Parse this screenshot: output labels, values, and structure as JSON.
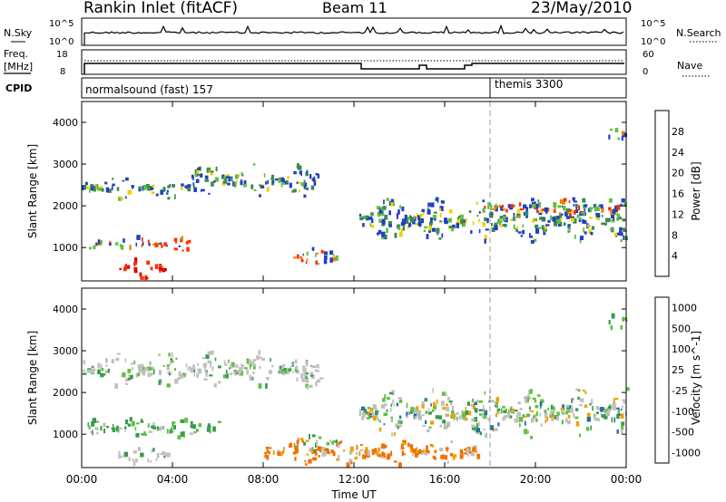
{
  "header": {
    "station": "Rankin Inlet (fitACF)",
    "beam": "Beam 11",
    "date": "23/May/2010"
  },
  "top_panels": {
    "nsky_label": "N.Sky",
    "nsky_ticks": [
      "10^5",
      "10^0"
    ],
    "nsearch_label": "N.Search",
    "nsearch_ticks": [
      "10^5",
      "10^0"
    ],
    "freq_label_line1": "Freq.",
    "freq_label_line2": "[MHz]",
    "freq_ticks": [
      "18",
      "8"
    ],
    "nave_label": "Nave",
    "nave_ticks": [
      "60",
      "0"
    ],
    "cpid_label": "CPID",
    "cpid_segments": [
      {
        "label": "normalsound (fast) 157",
        "start_hour": 0
      },
      {
        "label": "themis 3300",
        "start_hour": 18.0
      }
    ]
  },
  "chart_data": [
    {
      "type": "heatmap",
      "title": "",
      "ylabel": "Slant Range [km]",
      "xlabel": "",
      "x_range_hours": [
        0,
        24
      ],
      "ylim": [
        200,
        4500
      ],
      "y_ticks": [
        "1000",
        "2000",
        "3000",
        "4000"
      ],
      "colorbar_label": "Power [dB]",
      "colorbar_ticks": [
        "4",
        "8",
        "12",
        "16",
        "20",
        "24",
        "28"
      ],
      "colorbar_colors": [
        "#0000ff",
        "#2040c0",
        "#3a8a50",
        "#60c040",
        "#f0d000",
        "#f08000",
        "#ff3000",
        "#e00000"
      ],
      "echo_regions": [
        {
          "name": "near-range-strong",
          "t_start": 1.6,
          "t_end": 3.8,
          "r_low": 250,
          "r_high": 750,
          "level": "strong"
        },
        {
          "name": "band-1000-a",
          "t_start": 0.2,
          "t_end": 4.8,
          "r_low": 900,
          "r_high": 1250,
          "level": "medium"
        },
        {
          "name": "band-1000-b",
          "t_start": 9.3,
          "t_end": 11.4,
          "r_low": 550,
          "r_high": 1000,
          "level": "medium"
        },
        {
          "name": "band-2500-a",
          "t_start": 0.0,
          "t_end": 4.8,
          "r_low": 2150,
          "r_high": 2700,
          "level": "weak"
        },
        {
          "name": "band-2500-b",
          "t_start": 4.8,
          "t_end": 10.5,
          "r_low": 2200,
          "r_high": 3000,
          "level": "weak"
        },
        {
          "name": "band-late-1500",
          "t_start": 12.2,
          "t_end": 24.0,
          "r_low": 1100,
          "r_high": 2200,
          "level": "weak"
        },
        {
          "name": "band-late-2000",
          "t_start": 17.5,
          "t_end": 23.8,
          "r_low": 1700,
          "r_high": 2200,
          "level": "medium"
        },
        {
          "name": "far-range",
          "t_start": 23.2,
          "t_end": 24.0,
          "r_low": 3500,
          "r_high": 3900,
          "level": "medium"
        }
      ]
    },
    {
      "type": "heatmap",
      "title": "",
      "ylabel": "Slant Range [km]",
      "xlabel": "Time UT",
      "x_ticks": [
        "00:00",
        "04:00",
        "08:00",
        "12:00",
        "16:00",
        "20:00",
        "00:00"
      ],
      "x_range_hours": [
        0,
        24
      ],
      "ylim": [
        200,
        4500
      ],
      "y_ticks": [
        "1000",
        "2000",
        "3000",
        "4000"
      ],
      "colorbar_label": "Velocity [m s^-1]",
      "colorbar_ticks": [
        "1000",
        "500",
        "100",
        "25",
        "-25",
        "-100",
        "-500",
        "-1000"
      ],
      "colorbar_colors": [
        "#2030c0",
        "#2a70a0",
        "#3a9a50",
        "#60c040",
        "#c0c0c0",
        "#f0a000",
        "#f07000",
        "#ff0000"
      ],
      "echo_regions": [
        {
          "name": "near-range",
          "t_start": 1.6,
          "t_end": 3.8,
          "r_low": 250,
          "r_high": 750,
          "level": "grey"
        },
        {
          "name": "band-1000-a",
          "t_start": 0.2,
          "t_end": 6.0,
          "r_low": 900,
          "r_high": 1400,
          "level": "green"
        },
        {
          "name": "band-1000-b",
          "t_start": 9.3,
          "t_end": 11.4,
          "r_low": 550,
          "r_high": 1000,
          "level": "green"
        },
        {
          "name": "band-2500",
          "t_start": 0.0,
          "t_end": 10.5,
          "r_low": 2100,
          "r_high": 3000,
          "level": "grey"
        },
        {
          "name": "band-late-orange",
          "t_start": 8.0,
          "t_end": 17.5,
          "r_low": 250,
          "r_high": 900,
          "level": "orange"
        },
        {
          "name": "band-late-mixed",
          "t_start": 12.2,
          "t_end": 24.0,
          "r_low": 900,
          "r_high": 2100,
          "level": "mixed"
        },
        {
          "name": "far-range",
          "t_start": 23.2,
          "t_end": 24.0,
          "r_low": 3500,
          "r_high": 3900,
          "level": "green"
        }
      ]
    }
  ]
}
